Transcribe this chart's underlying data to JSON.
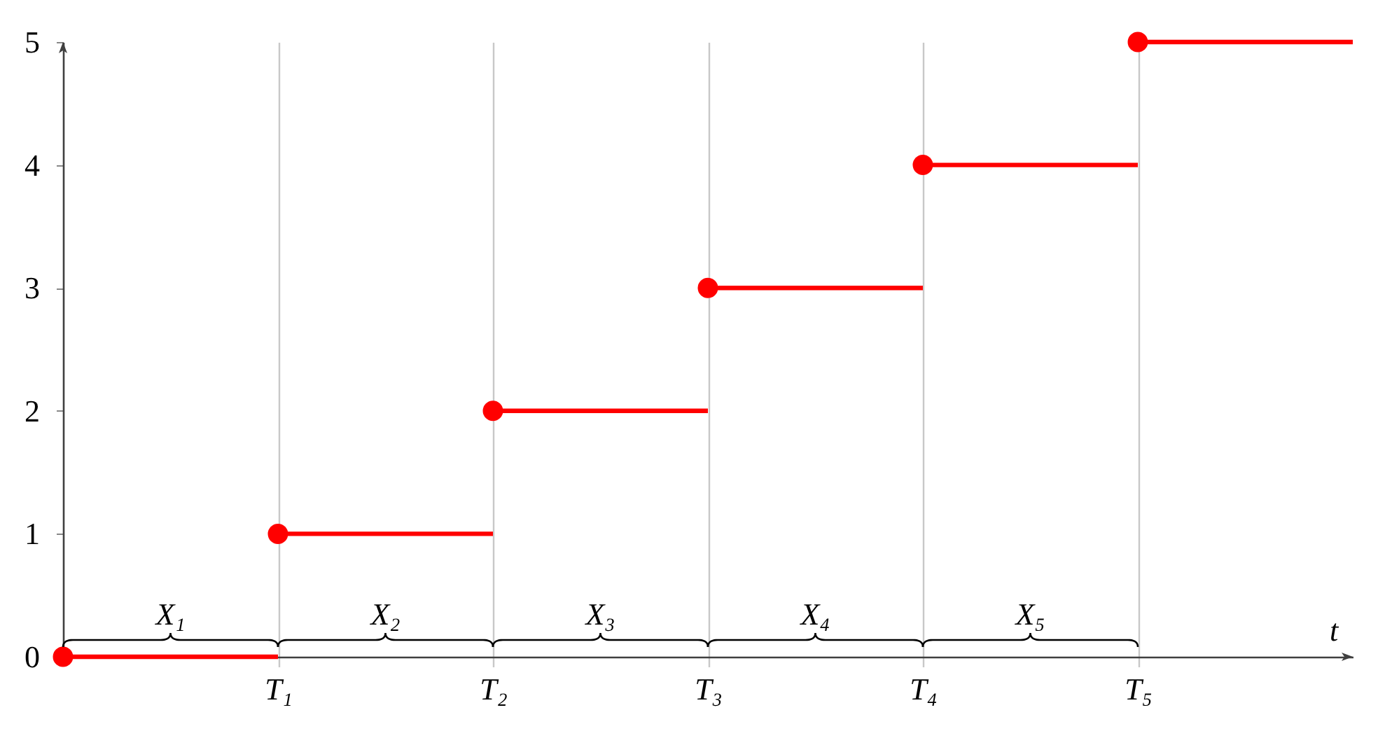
{
  "chart_data": {
    "type": "step",
    "xlabel": "t",
    "categories": [
      null,
      "T₁",
      "T₂",
      "T₃",
      "T₄",
      "T₅",
      null
    ],
    "series": [
      {
        "color": "#ff0000",
        "values": [
          0,
          1,
          2,
          3,
          4,
          5,
          5
        ]
      }
    ],
    "ylim": [
      0,
      5
    ],
    "yticks": [
      0,
      1,
      2,
      3,
      4,
      5
    ],
    "grid": "x",
    "marker": "circle",
    "line_style": "solid",
    "annotations": [
      "X₁",
      "X₂",
      "X₃",
      "X₄",
      "X₅"
    ]
  }
}
